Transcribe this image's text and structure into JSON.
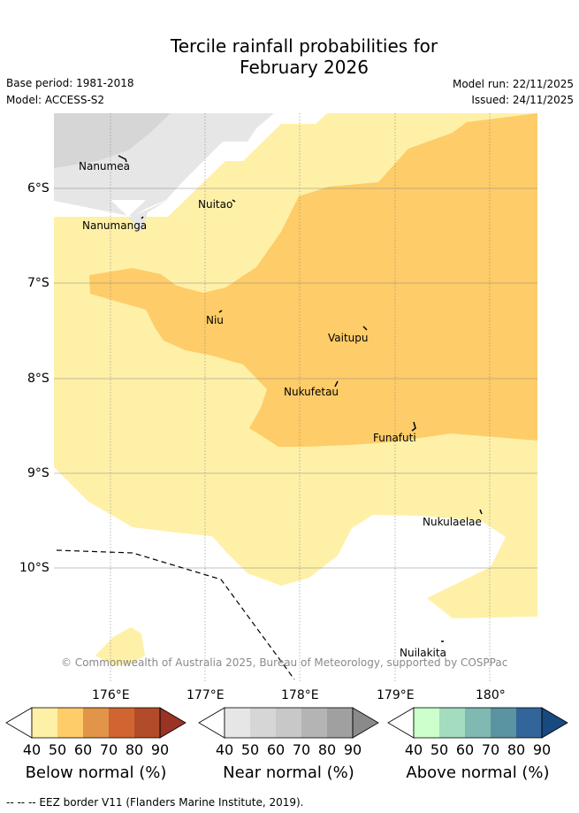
{
  "title_line1": "Tercile rainfall probabilities for",
  "title_line2": "February 2026",
  "base_period": "Base period: 1981-2018",
  "model": "Model: ACCESS-S2",
  "model_run": "Model run: 22/11/2025",
  "issued": "Issued: 24/11/2025",
  "map": {
    "lat_labels": [
      "6°S",
      "7°S",
      "8°S",
      "9°S",
      "10°S"
    ],
    "lon_labels": [
      "176°E",
      "177°E",
      "178°E",
      "179°E",
      "180°"
    ],
    "islands": {
      "nanumea": "Nanumea",
      "nuitao": "Nuitao",
      "nanumanga": "Nanumanga",
      "niu": "Niu",
      "vaitupu": "Vaitupu",
      "nukufetau": "Nukufetau",
      "funafuti": "Funafuti",
      "nukulaelae": "Nukulaelae",
      "nuilakita": "Nuilakita"
    },
    "copyright": "© Commonwealth of Australia 2025, Bureau of Meteorology, supported by COSPPac"
  },
  "colorbars": {
    "ticks": [
      "40",
      "50",
      "60",
      "70",
      "80",
      "90"
    ],
    "below": {
      "title": "Below normal (%)",
      "colors": [
        "#fff0a8",
        "#fecc68",
        "#e29449",
        "#d06531",
        "#b14b2a",
        "#9a3324"
      ]
    },
    "near": {
      "title": "Near normal (%)",
      "colors": [
        "#e6e6e6",
        "#d6d6d6",
        "#c8c8c8",
        "#b4b4b4",
        "#a0a0a0",
        "#8a8a8a"
      ]
    },
    "above": {
      "title": "Above normal (%)",
      "colors": [
        "#ccffcc",
        "#a3dcbe",
        "#80b8b2",
        "#5a93a2",
        "#326599",
        "#184a80"
      ]
    }
  },
  "eez_note": "--  --  -- EEZ border V11 (Flanders Marine Institute, 2019).",
  "colors": {
    "below_40": "#fff0a8",
    "below_50": "#fecc68",
    "near_40": "#e6e6e6",
    "near_50": "#d6d6d6"
  }
}
